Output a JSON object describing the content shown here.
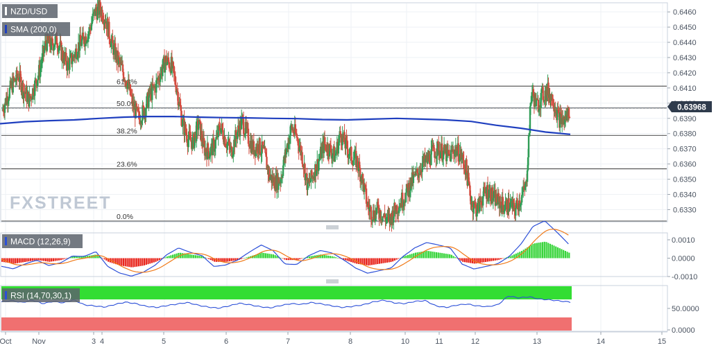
{
  "symbol": "NZD/USD",
  "indicators": {
    "sma": "SMA (200,0)",
    "macd": "MACD (12,26,9)",
    "rsi": "RSI (14,70,30,1)"
  },
  "watermark": "FXSTREET",
  "current_price": "0.63968",
  "colors": {
    "up": "#2e9c55",
    "down": "#d34b3e",
    "sma": "#1f3fbf",
    "macd_line": "#2b4fd8",
    "signal_line": "#f07a18",
    "hist_pos": "#37d43a",
    "hist_neg": "#e8241b",
    "rsi_over": "#33dd33",
    "rsi_under": "#f07070",
    "price_tag": "#2f3b4c"
  },
  "price_axis": [
    "0.6460",
    "0.6450",
    "0.6440",
    "0.6430",
    "0.6420",
    "0.6410",
    "0.6400",
    "0.6390",
    "0.6380",
    "0.6370",
    "0.6360",
    "0.6350",
    "0.6340",
    "0.6330"
  ],
  "macd_axis": [
    "0.0010",
    "0.0000",
    "-0.0010"
  ],
  "rsi_axis": [
    "50.0000",
    "0.0000"
  ],
  "time_axis": [
    "Oct",
    "Nov",
    "3",
    "4",
    "5",
    "6",
    "7",
    "8",
    "10",
    "11",
    "12",
    "13",
    "14",
    "15"
  ],
  "chart_data": {
    "type": "candlestick",
    "title": "NZD/USD",
    "ylim": [
      0.6322,
      0.6466
    ],
    "fib_levels": [
      {
        "label": "61.8%",
        "value": 0.64112
      },
      {
        "label": "50.0%",
        "value": 0.63968
      },
      {
        "label": "38.2%",
        "value": 0.63788
      },
      {
        "label": "23.6%",
        "value": 0.63568
      },
      {
        "label": "0.0%",
        "value": 0.63225
      }
    ],
    "close_path": [
      0.6395,
      0.6405,
      0.6413,
      0.6418,
      0.6408,
      0.6402,
      0.6412,
      0.6423,
      0.644,
      0.6438,
      0.6442,
      0.6432,
      0.6425,
      0.643,
      0.6438,
      0.6442,
      0.6448,
      0.646,
      0.6462,
      0.6455,
      0.644,
      0.643,
      0.6422,
      0.6413,
      0.6398,
      0.639,
      0.6395,
      0.6405,
      0.641,
      0.642,
      0.6428,
      0.6425,
      0.641,
      0.6388,
      0.6377,
      0.6374,
      0.6387,
      0.637,
      0.6368,
      0.6373,
      0.6385,
      0.6375,
      0.6368,
      0.638,
      0.6388,
      0.6378,
      0.637,
      0.6372,
      0.6367,
      0.6352,
      0.6348,
      0.635,
      0.6368,
      0.6384,
      0.6378,
      0.6365,
      0.6345,
      0.6353,
      0.6362,
      0.6373,
      0.637,
      0.6365,
      0.638,
      0.6372,
      0.6365,
      0.6362,
      0.635,
      0.6332,
      0.6327,
      0.633,
      0.6325,
      0.6323,
      0.633,
      0.6335,
      0.634,
      0.6348,
      0.6353,
      0.636,
      0.6362,
      0.6368,
      0.637,
      0.6367,
      0.6365,
      0.637,
      0.6366,
      0.6357,
      0.6335,
      0.633,
      0.6338,
      0.6343,
      0.6338,
      0.6335,
      0.6332,
      0.6333,
      0.633,
      0.6337,
      0.6345,
      0.6408,
      0.6398,
      0.6405,
      0.6408,
      0.6402,
      0.639,
      0.6388,
      0.6396
    ],
    "sma_path": [
      0.63865,
      0.63878,
      0.63885,
      0.6389,
      0.639,
      0.63908,
      0.63912,
      0.63912,
      0.63908,
      0.63905,
      0.63903,
      0.639,
      0.63898,
      0.63892,
      0.6389,
      0.63895,
      0.639,
      0.63895,
      0.6389,
      0.6388,
      0.63855,
      0.63835,
      0.6381,
      0.63795
    ],
    "macd_hist": [
      -0.0002,
      -0.0003,
      -0.0002,
      -0.0001,
      -0.0002,
      -0.0001,
      0.0001,
      0.0001,
      0.0002,
      -0.0002,
      -0.0004,
      -0.0005,
      -0.0004,
      -0.0002,
      0.0001,
      0.0003,
      0.0002,
      0.0001,
      -0.0002,
      -0.0002,
      -0.0001,
      0.0001,
      0.0003,
      0.0002,
      -0.0001,
      -0.0001,
      0.0001,
      0.0002,
      0.0001,
      -0.0001,
      -0.0003,
      -0.0004,
      -0.0003,
      -0.0002,
      0.0001,
      0.0003,
      0.0004,
      0.0003,
      0.0002,
      -0.0002,
      -0.0003,
      -0.0002,
      -0.0001,
      0.0001,
      0.0004,
      0.0008,
      0.0009,
      0.0006,
      0.0003
    ],
    "rsi_path": [
      63,
      66,
      61,
      67,
      58,
      64,
      60,
      68,
      55,
      52,
      49,
      56,
      62,
      58,
      51,
      48,
      53,
      57,
      61,
      54,
      49,
      46,
      52,
      59,
      55,
      50,
      47,
      53,
      58,
      56,
      61,
      57,
      52,
      48,
      51,
      55,
      63,
      67,
      60,
      58,
      64,
      66,
      52,
      48,
      54,
      57,
      52,
      50,
      55,
      78,
      73,
      76,
      70,
      68,
      65,
      62
    ]
  }
}
